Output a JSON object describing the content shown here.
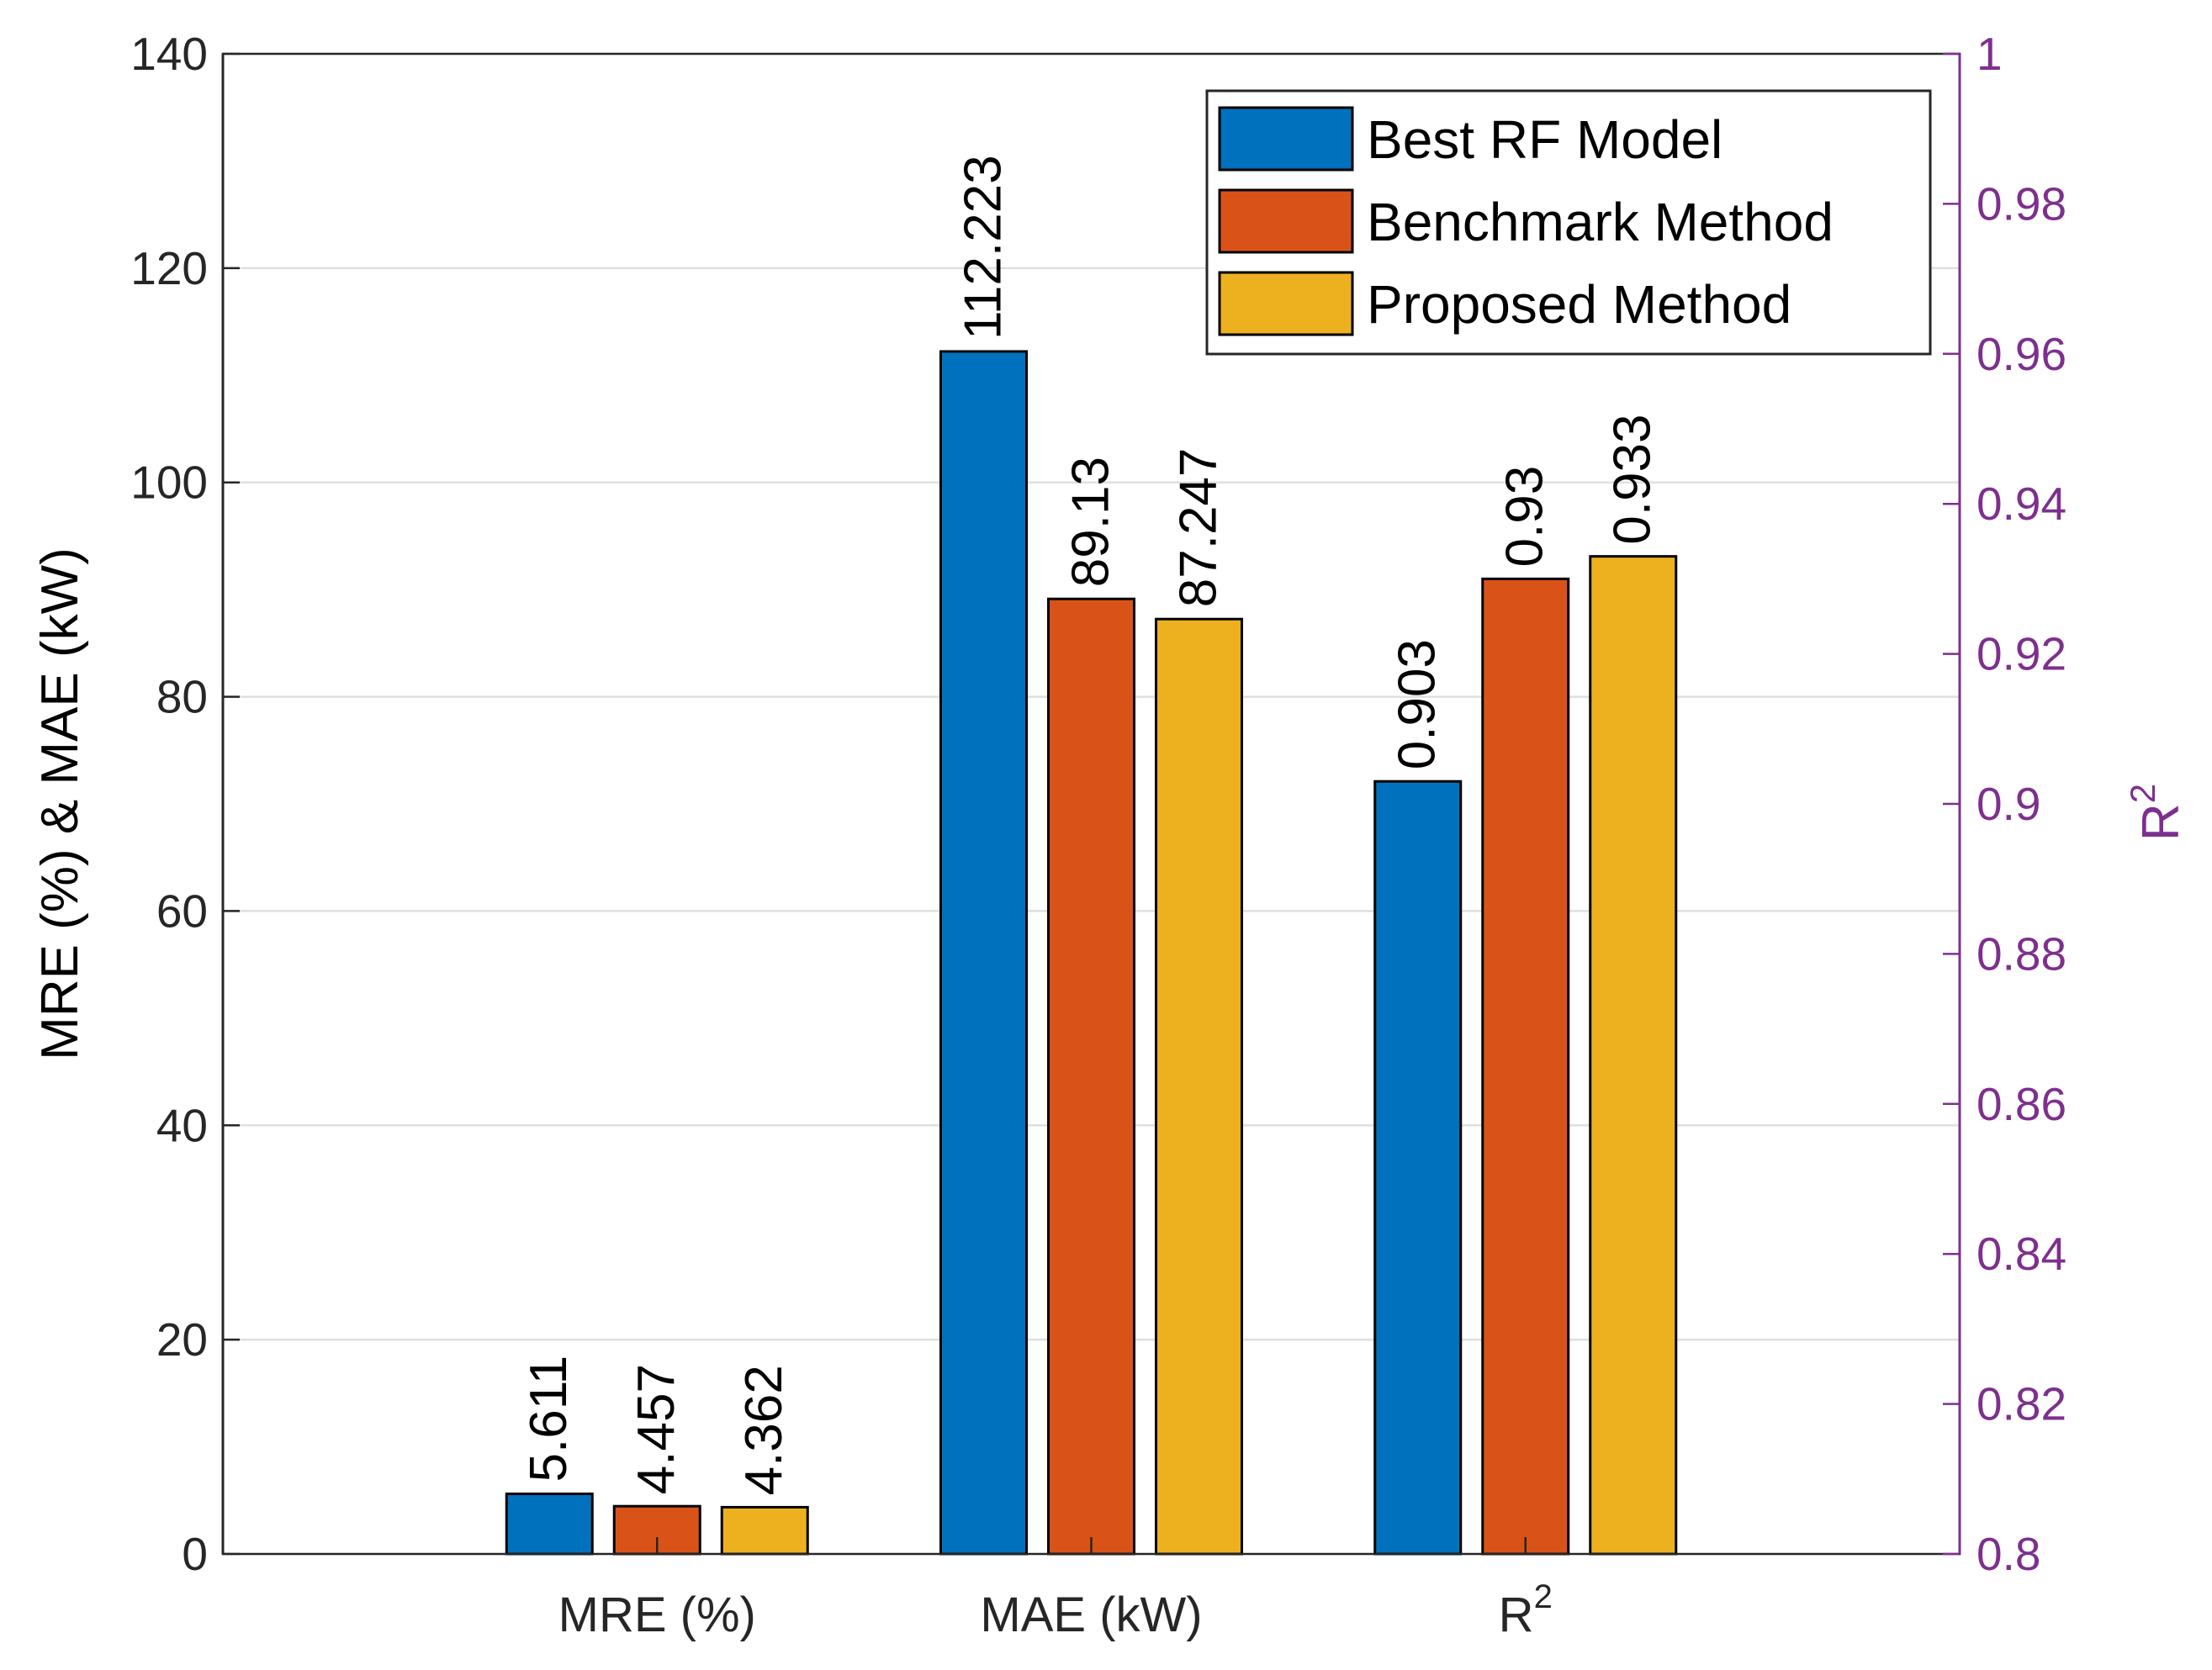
{
  "chart_data": {
    "type": "bar",
    "categories": [
      {
        "label": "MRE (%)",
        "superscript": ""
      },
      {
        "label": "MAE (kW)",
        "superscript": ""
      },
      {
        "label": "R",
        "superscript": "2"
      }
    ],
    "series": [
      {
        "name": "Best RF Model",
        "color": "#0072BD",
        "values": [
          5.611,
          112.223,
          0.903
        ],
        "labels": [
          "5.611",
          "112.223",
          "0.903"
        ]
      },
      {
        "name": "Benchmark Method",
        "color": "#D95319",
        "values": [
          4.457,
          89.13,
          0.93
        ],
        "labels": [
          "4.457",
          "89.13",
          "0.93"
        ]
      },
      {
        "name": "Proposed Method",
        "color": "#EDB120",
        "values": [
          4.362,
          87.247,
          0.933
        ],
        "labels": [
          "4.362",
          "87.247",
          "0.933"
        ]
      }
    ],
    "axis_assignment": [
      "left",
      "left",
      "right"
    ],
    "left_axis": {
      "label": "MRE (%) & MAE (kW)",
      "ylim": [
        0,
        140
      ],
      "ticks": [
        0,
        20,
        40,
        60,
        80,
        100,
        120,
        140
      ],
      "tick_labels": [
        "0",
        "20",
        "40",
        "60",
        "80",
        "100",
        "120",
        "140"
      ],
      "color": "#000000"
    },
    "right_axis": {
      "label": "R",
      "label_superscript": "2",
      "ylim": [
        0.8,
        1.0
      ],
      "ticks": [
        0.8,
        0.82,
        0.84,
        0.86,
        0.88,
        0.9,
        0.92,
        0.94,
        0.96,
        0.98,
        1.0
      ],
      "tick_labels": [
        "0.8",
        "0.82",
        "0.84",
        "0.86",
        "0.88",
        "0.9",
        "0.92",
        "0.94",
        "0.96",
        "0.98",
        "1"
      ],
      "color": "#7E2F8E"
    },
    "grid": true,
    "legend_position": "top-right"
  }
}
